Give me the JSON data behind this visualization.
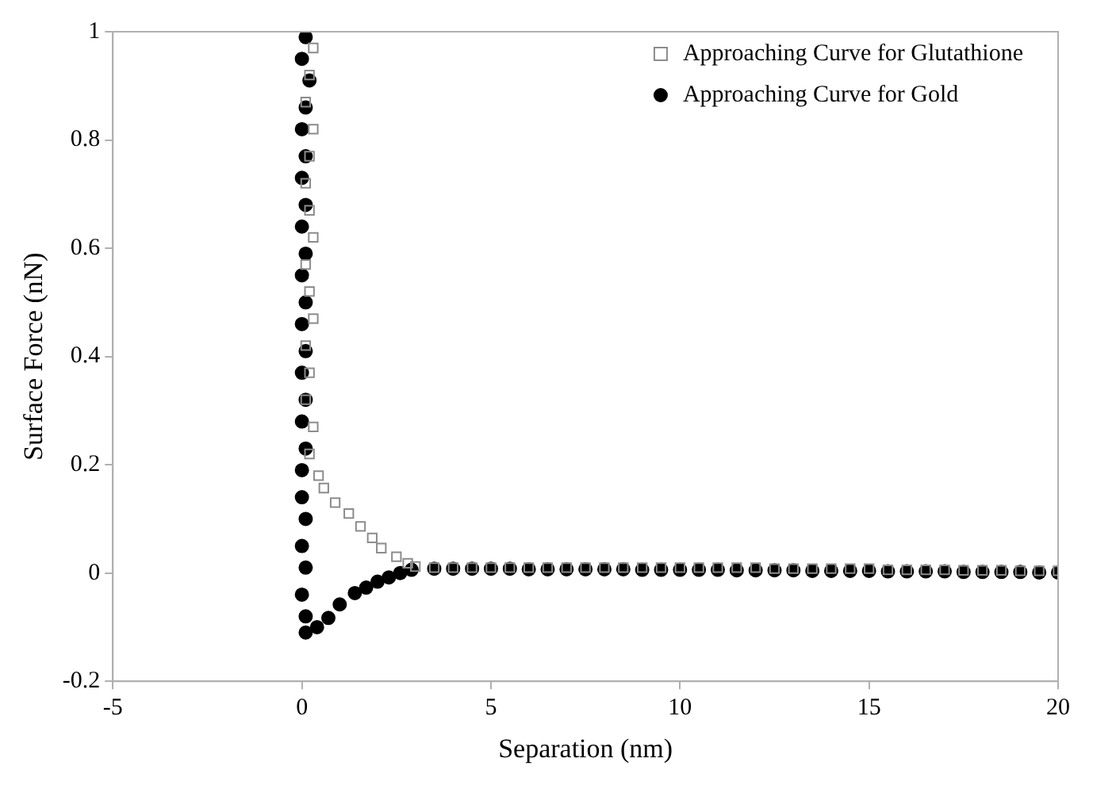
{
  "chart_data": {
    "type": "scatter",
    "xlabel": "Separation (nm)",
    "ylabel": "Surface Force (nN)",
    "xlim": [
      -5,
      20
    ],
    "xticks": [
      -5,
      0,
      5,
      10,
      15,
      20
    ],
    "ylim": [
      -0.2,
      1
    ],
    "yticks": [
      -0.2,
      0,
      0.2,
      0.4,
      0.6,
      0.8,
      1
    ],
    "grid": false,
    "legend": "top right",
    "series": [
      {
        "name": "Approaching Curve for Glutathione",
        "color": "#8c8c8c",
        "marker": "square",
        "x": [
          0.3,
          0.2,
          0.1,
          0.3,
          0.2,
          0.1,
          0.2,
          0.3,
          0.1,
          0.2,
          0.3,
          0.1,
          0.2,
          0.1,
          0.3,
          0.2,
          0.44,
          0.58,
          0.88,
          1.24,
          1.55,
          1.86,
          2.1,
          2.5,
          2.8,
          3.0,
          3.5,
          4,
          4.5,
          5,
          5.5,
          6,
          6.5,
          7,
          7.5,
          8,
          8.5,
          9,
          9.5,
          10,
          10.5,
          11,
          11.5,
          12,
          12.5,
          13,
          13.5,
          14,
          14.5,
          15,
          15.5,
          16,
          16.5,
          17,
          17.5,
          18,
          18.5,
          19,
          19.5,
          20
        ],
        "values": [
          0.97,
          0.92,
          0.87,
          0.82,
          0.77,
          0.72,
          0.67,
          0.62,
          0.57,
          0.52,
          0.47,
          0.42,
          0.37,
          0.32,
          0.27,
          0.22,
          0.18,
          0.157,
          0.13,
          0.11,
          0.086,
          0.065,
          0.046,
          0.03,
          0.018,
          0.012,
          0.01,
          0.01,
          0.01,
          0.01,
          0.01,
          0.01,
          0.01,
          0.01,
          0.01,
          0.01,
          0.01,
          0.01,
          0.01,
          0.01,
          0.01,
          0.01,
          0.01,
          0.01,
          0.008,
          0.008,
          0.008,
          0.008,
          0.008,
          0.008,
          0.006,
          0.006,
          0.006,
          0.006,
          0.005,
          0.005,
          0.005,
          0.004,
          0.004,
          0.004
        ]
      },
      {
        "name": "Approaching Curve for Gold",
        "color": "#000000",
        "marker": "circle",
        "x": [
          0.1,
          0.0,
          0.2,
          0.1,
          0.0,
          0.1,
          0.0,
          0.1,
          0.0,
          0.1,
          0.0,
          0.1,
          0.0,
          0.1,
          0.0,
          0.1,
          0.0,
          0.1,
          0.0,
          0.0,
          0.1,
          0.0,
          0.1,
          0.0,
          0.1,
          0.1,
          0.4,
          0.7,
          1.0,
          1.4,
          1.7,
          2.0,
          2.3,
          2.6,
          2.9,
          3.5,
          4,
          4.5,
          5,
          5.5,
          6,
          6.5,
          7,
          7.5,
          8,
          8.5,
          9,
          9.5,
          10,
          10.5,
          11,
          11.5,
          12,
          12.5,
          13,
          13.5,
          14,
          14.5,
          15,
          15.5,
          16,
          16.5,
          17,
          17.5,
          18,
          18.5,
          19,
          19.5,
          20
        ],
        "values": [
          0.99,
          0.95,
          0.91,
          0.86,
          0.82,
          0.77,
          0.73,
          0.68,
          0.64,
          0.59,
          0.55,
          0.5,
          0.46,
          0.41,
          0.37,
          0.32,
          0.28,
          0.23,
          0.19,
          0.14,
          0.1,
          0.05,
          0.01,
          -0.04,
          -0.08,
          -0.11,
          -0.1,
          -0.083,
          -0.058,
          -0.037,
          -0.027,
          -0.016,
          -0.008,
          0.0,
          0.006,
          0.008,
          0.008,
          0.008,
          0.008,
          0.008,
          0.007,
          0.007,
          0.007,
          0.007,
          0.007,
          0.007,
          0.006,
          0.006,
          0.006,
          0.006,
          0.006,
          0.005,
          0.005,
          0.005,
          0.005,
          0.004,
          0.004,
          0.004,
          0.004,
          0.003,
          0.003,
          0.003,
          0.003,
          0.002,
          0.002,
          0.002,
          0.002,
          0.001,
          0.001
        ]
      }
    ]
  }
}
